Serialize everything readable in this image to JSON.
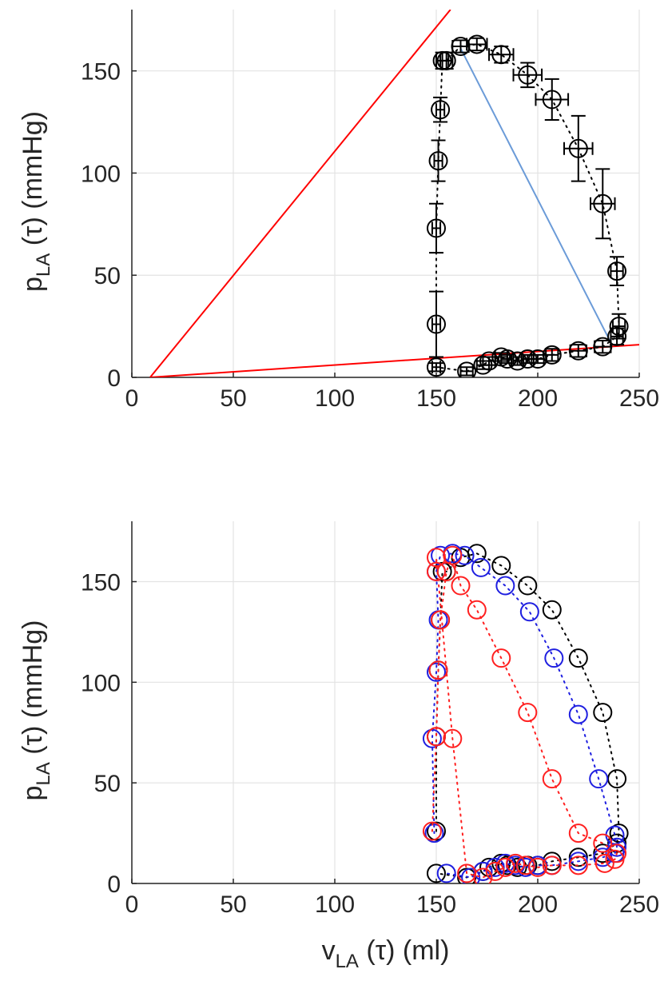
{
  "chart_data": [
    {
      "type": "scatter",
      "title": "",
      "xlabel": "",
      "ylabel": {
        "main": "p",
        "sub": "LA",
        "rest": " (τ) (mmHg)"
      },
      "xlim": [
        0,
        250
      ],
      "ylim": [
        0,
        180
      ],
      "xticks": [
        "0",
        "50",
        "100",
        "150",
        "200",
        "250"
      ],
      "yticks": [
        "0",
        "50",
        "100",
        "150"
      ],
      "grid": true,
      "series": [
        {
          "color": "#000000",
          "marker": "circle",
          "line": "dotted",
          "error_bars": "x and y",
          "x": [
            150,
            150,
            151,
            152,
            153,
            155,
            162,
            170,
            182,
            195,
            207,
            220,
            232,
            239,
            240,
            239,
            232,
            220,
            207,
            200,
            195,
            190,
            185,
            182,
            176,
            173,
            165,
            150
          ],
          "y": [
            26,
            73,
            106,
            131,
            155,
            155,
            162,
            163,
            158,
            148,
            136,
            112,
            85,
            52,
            25,
            20,
            15,
            13,
            11,
            9,
            9,
            8,
            9,
            10,
            8,
            6,
            3,
            5
          ],
          "xerr": [
            2,
            2,
            2,
            2,
            3,
            3,
            4,
            5,
            6,
            7,
            8,
            7,
            6,
            3,
            3,
            3,
            4,
            4,
            3,
            3,
            3,
            3,
            3,
            3,
            3,
            3,
            3,
            2
          ],
          "yerr": [
            16,
            12,
            10,
            6,
            4,
            4,
            3,
            3,
            4,
            6,
            10,
            16,
            17,
            7,
            6,
            4,
            3,
            3,
            3,
            2,
            2,
            2,
            2,
            2,
            2,
            2,
            2,
            2
          ]
        }
      ],
      "reference_lines": [
        {
          "color": "#ff0000",
          "x": [
            9,
            157
          ],
          "y": [
            0,
            180
          ]
        },
        {
          "color": "#ff0000",
          "x": [
            9,
            250
          ],
          "y": [
            0,
            16
          ]
        },
        {
          "color": "#6b9bd8",
          "x": [
            162,
            236
          ],
          "y": [
            161,
            17
          ]
        }
      ]
    },
    {
      "type": "scatter",
      "title": "",
      "xlabel": {
        "main": "v",
        "sub": "LA",
        "rest": " (τ) (ml)"
      },
      "ylabel": {
        "main": "p",
        "sub": "LA",
        "rest": " (τ) (mmHg)"
      },
      "xlim": [
        0,
        250
      ],
      "ylim": [
        0,
        180
      ],
      "xticks": [
        "0",
        "50",
        "100",
        "150",
        "200",
        "250"
      ],
      "yticks": [
        "0",
        "50",
        "100",
        "150"
      ],
      "grid": true,
      "series": [
        {
          "color": "#000000",
          "marker": "circle",
          "line": "dotted",
          "x": [
            150,
            150,
            151,
            152,
            153,
            155,
            162,
            170,
            182,
            195,
            207,
            220,
            232,
            239,
            240,
            239,
            232,
            220,
            207,
            200,
            195,
            190,
            185,
            182,
            176,
            173,
            165,
            150
          ],
          "y": [
            26,
            73,
            106,
            131,
            155,
            155,
            162,
            164,
            158,
            148,
            136,
            112,
            85,
            52,
            25,
            20,
            15,
            13,
            11,
            9,
            9,
            8,
            9,
            10,
            8,
            6,
            3,
            5
          ]
        },
        {
          "color": "#1f1fe0",
          "marker": "circle",
          "line": "dotted",
          "x": [
            149,
            148,
            150,
            151,
            150,
            152,
            158,
            164,
            172,
            184,
            196,
            208,
            220,
            230,
            238,
            239,
            238,
            232,
            220,
            207,
            200,
            194,
            189,
            184,
            179,
            173,
            167,
            155
          ],
          "y": [
            25,
            72,
            105,
            131,
            155,
            163,
            164,
            163,
            157,
            148,
            135,
            112,
            84,
            52,
            24,
            18,
            15,
            13,
            11,
            9,
            9,
            8,
            9,
            10,
            8,
            6,
            3,
            5
          ]
        },
        {
          "color": "#ff2020",
          "marker": "circle",
          "line": "dotted",
          "x": [
            148,
            150,
            151,
            152,
            155,
            158,
            162,
            170,
            182,
            195,
            207,
            220,
            232,
            239,
            238,
            233,
            220,
            207,
            200,
            194,
            189,
            184,
            179,
            173,
            165,
            158,
            150,
            150
          ],
          "y": [
            26,
            73,
            106,
            131,
            155,
            163,
            148,
            136,
            112,
            85,
            52,
            25,
            20,
            15,
            12,
            10,
            9,
            9,
            8,
            9,
            10,
            8,
            6,
            3,
            5,
            72,
            162,
            155
          ]
        }
      ],
      "reference_lines": []
    }
  ]
}
